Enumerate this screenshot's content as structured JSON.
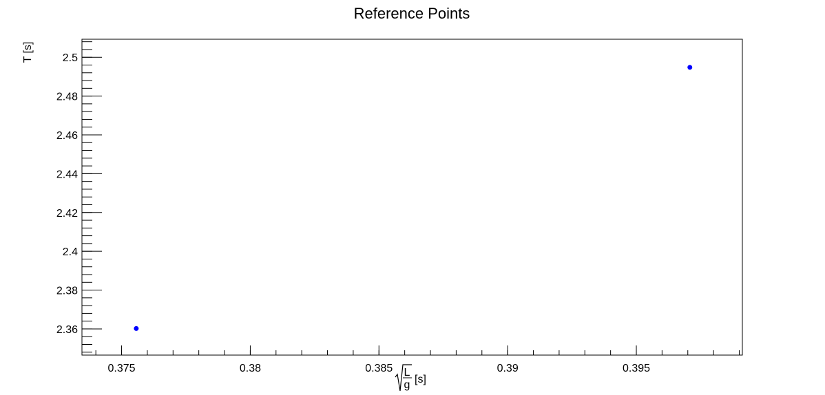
{
  "chart_data": {
    "type": "scatter",
    "title": "Reference Points",
    "ylabel": "T [s]",
    "xlabel": {
      "numerator": "L",
      "denominator": "g",
      "unit": "[s]"
    },
    "xlim": [
      0.37346,
      0.39912
    ],
    "ylim": [
      2.3465,
      2.5093
    ],
    "x_ticks": [
      {
        "value": 0.375,
        "label": "0.375"
      },
      {
        "value": 0.38,
        "label": "0.38"
      },
      {
        "value": 0.385,
        "label": "0.385"
      },
      {
        "value": 0.39,
        "label": "0.39"
      },
      {
        "value": 0.395,
        "label": "0.395"
      }
    ],
    "x_minor_step": 0.001,
    "y_ticks": [
      {
        "value": 2.36,
        "label": "2.36"
      },
      {
        "value": 2.38,
        "label": "2.38"
      },
      {
        "value": 2.4,
        "label": "2.4"
      },
      {
        "value": 2.42,
        "label": "2.42"
      },
      {
        "value": 2.44,
        "label": "2.44"
      },
      {
        "value": 2.46,
        "label": "2.46"
      },
      {
        "value": 2.48,
        "label": "2.48"
      },
      {
        "value": 2.5,
        "label": "2.5"
      }
    ],
    "y_minor_step": 0.004,
    "grid": false,
    "marker_color": "#0000ff",
    "series": [
      {
        "x": [
          0.37557,
          0.39708
        ],
        "y": [
          2.3602,
          2.4948
        ]
      }
    ]
  }
}
